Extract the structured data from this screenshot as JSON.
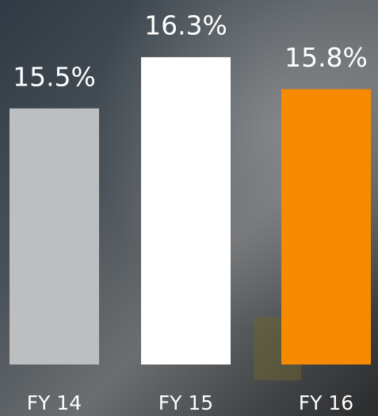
{
  "chart_data": {
    "type": "bar",
    "categories": [
      "FY 14",
      "FY 15",
      "FY 16"
    ],
    "values": [
      15.5,
      16.3,
      15.8
    ],
    "value_labels": [
      "15.5%",
      "16.3%",
      "15.8%"
    ],
    "colors": [
      "#bcbec0",
      "#ffffff",
      "#f78b00"
    ],
    "ylim": [
      11.5,
      16.5
    ]
  }
}
